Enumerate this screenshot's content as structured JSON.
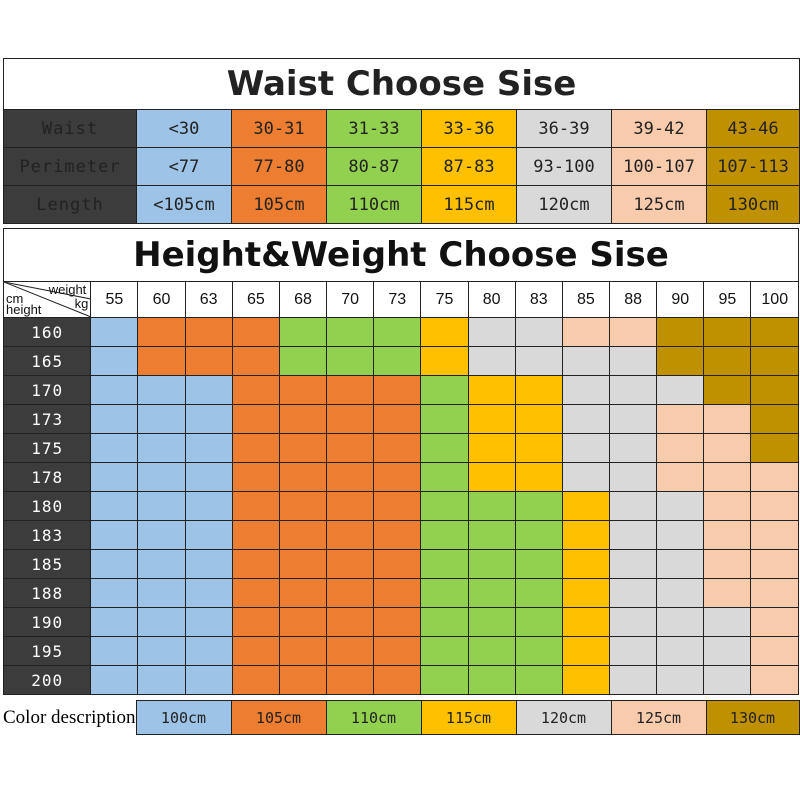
{
  "colors": {
    "100cm": "#9dc3e6",
    "105cm": "#ed7d31",
    "110cm": "#92d050",
    "115cm": "#ffc000",
    "120cm": "#d9d9d9",
    "125cm": "#f8cbad",
    "130cm": "#bf9000",
    "label_bg": "#3c3c3c"
  },
  "waist": {
    "title": "Waist Choose Sise",
    "rows": [
      {
        "label": "Waist",
        "values": [
          "<30",
          "30-31",
          "31-33",
          "33-36",
          "36-39",
          "39-42",
          "43-46"
        ]
      },
      {
        "label": "Perimeter",
        "values": [
          "<77",
          "77-80",
          "80-87",
          "87-83",
          "93-100",
          "100-107",
          "107-113"
        ]
      },
      {
        "label": "Length",
        "values": [
          "<105cm",
          "105cm",
          "110cm",
          "115cm",
          "120cm",
          "125cm",
          "130cm"
        ]
      }
    ],
    "column_colors": [
      "100cm",
      "105cm",
      "110cm",
      "115cm",
      "120cm",
      "125cm",
      "130cm"
    ]
  },
  "hw": {
    "title": "Height&Weight Choose Sise",
    "corner": {
      "weight": "weight",
      "kg": "kg",
      "cm": "cm",
      "height": "height"
    },
    "weights": [
      "55",
      "60",
      "63",
      "65",
      "68",
      "70",
      "73",
      "75",
      "80",
      "83",
      "85",
      "88",
      "90",
      "95",
      "100"
    ],
    "rows": [
      {
        "height": "160",
        "sizes": [
          "100cm",
          "105cm",
          "105cm",
          "105cm",
          "110cm",
          "110cm",
          "110cm",
          "115cm",
          "120cm",
          "120cm",
          "125cm",
          "125cm",
          "130cm",
          "130cm",
          "130cm"
        ]
      },
      {
        "height": "165",
        "sizes": [
          "100cm",
          "105cm",
          "105cm",
          "105cm",
          "110cm",
          "110cm",
          "110cm",
          "115cm",
          "120cm",
          "120cm",
          "120cm",
          "120cm",
          "130cm",
          "130cm",
          "130cm"
        ]
      },
      {
        "height": "170",
        "sizes": [
          "100cm",
          "100cm",
          "100cm",
          "105cm",
          "105cm",
          "105cm",
          "105cm",
          "110cm",
          "115cm",
          "115cm",
          "120cm",
          "120cm",
          "120cm",
          "130cm",
          "130cm"
        ]
      },
      {
        "height": "173",
        "sizes": [
          "100cm",
          "100cm",
          "100cm",
          "105cm",
          "105cm",
          "105cm",
          "105cm",
          "110cm",
          "115cm",
          "115cm",
          "120cm",
          "120cm",
          "125cm",
          "125cm",
          "130cm"
        ]
      },
      {
        "height": "175",
        "sizes": [
          "100cm",
          "100cm",
          "100cm",
          "105cm",
          "105cm",
          "105cm",
          "105cm",
          "110cm",
          "115cm",
          "115cm",
          "120cm",
          "120cm",
          "125cm",
          "125cm",
          "130cm"
        ]
      },
      {
        "height": "178",
        "sizes": [
          "100cm",
          "100cm",
          "100cm",
          "105cm",
          "105cm",
          "105cm",
          "105cm",
          "110cm",
          "115cm",
          "115cm",
          "120cm",
          "120cm",
          "125cm",
          "125cm",
          "125cm"
        ]
      },
      {
        "height": "180",
        "sizes": [
          "100cm",
          "100cm",
          "100cm",
          "105cm",
          "105cm",
          "105cm",
          "105cm",
          "110cm",
          "110cm",
          "110cm",
          "115cm",
          "120cm",
          "120cm",
          "125cm",
          "125cm"
        ]
      },
      {
        "height": "183",
        "sizes": [
          "100cm",
          "100cm",
          "100cm",
          "105cm",
          "105cm",
          "105cm",
          "105cm",
          "110cm",
          "110cm",
          "110cm",
          "115cm",
          "120cm",
          "120cm",
          "125cm",
          "125cm"
        ]
      },
      {
        "height": "185",
        "sizes": [
          "100cm",
          "100cm",
          "100cm",
          "105cm",
          "105cm",
          "105cm",
          "105cm",
          "110cm",
          "110cm",
          "110cm",
          "115cm",
          "120cm",
          "120cm",
          "125cm",
          "125cm"
        ]
      },
      {
        "height": "188",
        "sizes": [
          "100cm",
          "100cm",
          "100cm",
          "105cm",
          "105cm",
          "105cm",
          "105cm",
          "110cm",
          "110cm",
          "110cm",
          "115cm",
          "120cm",
          "120cm",
          "125cm",
          "125cm"
        ]
      },
      {
        "height": "190",
        "sizes": [
          "100cm",
          "100cm",
          "100cm",
          "105cm",
          "105cm",
          "105cm",
          "105cm",
          "110cm",
          "110cm",
          "110cm",
          "115cm",
          "120cm",
          "120cm",
          "120cm",
          "125cm"
        ]
      },
      {
        "height": "195",
        "sizes": [
          "100cm",
          "100cm",
          "100cm",
          "105cm",
          "105cm",
          "105cm",
          "105cm",
          "110cm",
          "110cm",
          "110cm",
          "115cm",
          "120cm",
          "120cm",
          "120cm",
          "125cm"
        ]
      },
      {
        "height": "200",
        "sizes": [
          "100cm",
          "100cm",
          "100cm",
          "105cm",
          "105cm",
          "105cm",
          "105cm",
          "110cm",
          "110cm",
          "110cm",
          "115cm",
          "120cm",
          "120cm",
          "120cm",
          "125cm"
        ]
      }
    ]
  },
  "color_description": {
    "label": "Color description",
    "items": [
      "100cm",
      "105cm",
      "110cm",
      "115cm",
      "120cm",
      "125cm",
      "130cm"
    ]
  }
}
